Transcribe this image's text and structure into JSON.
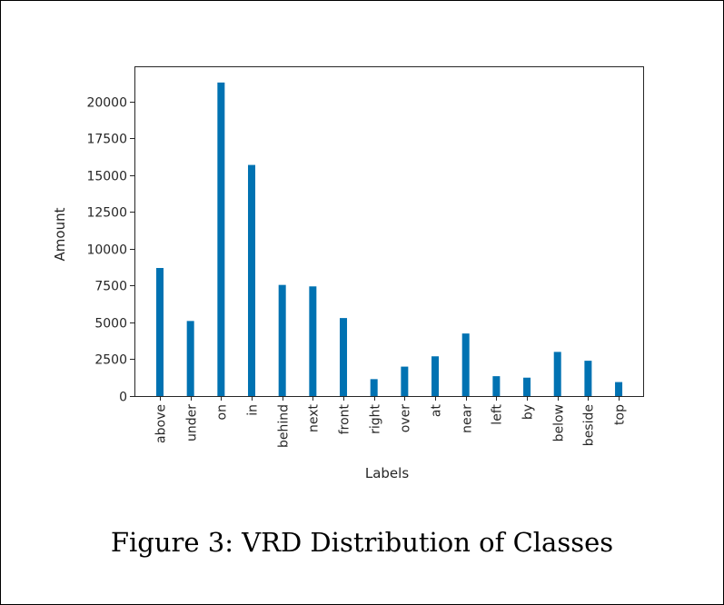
{
  "figure": {
    "caption": "Figure 3: VRD Distribution of Classes"
  },
  "chart_data": {
    "type": "bar",
    "title": "",
    "xlabel": "Labels",
    "ylabel": "Amount",
    "categories": [
      "above",
      "under",
      "on",
      "in",
      "behind",
      "next",
      "front",
      "right",
      "over",
      "at",
      "near",
      "left",
      "by",
      "below",
      "beside",
      "top"
    ],
    "values": [
      8700,
      5100,
      21300,
      15700,
      7550,
      7450,
      5300,
      1150,
      2000,
      2700,
      4250,
      1350,
      1250,
      3000,
      2400,
      950
    ],
    "ylim": [
      0,
      22400
    ],
    "yticks": [
      0,
      2500,
      5000,
      7500,
      10000,
      12500,
      15000,
      17500,
      20000
    ],
    "bar_color": "#0072B2",
    "grid": false
  }
}
